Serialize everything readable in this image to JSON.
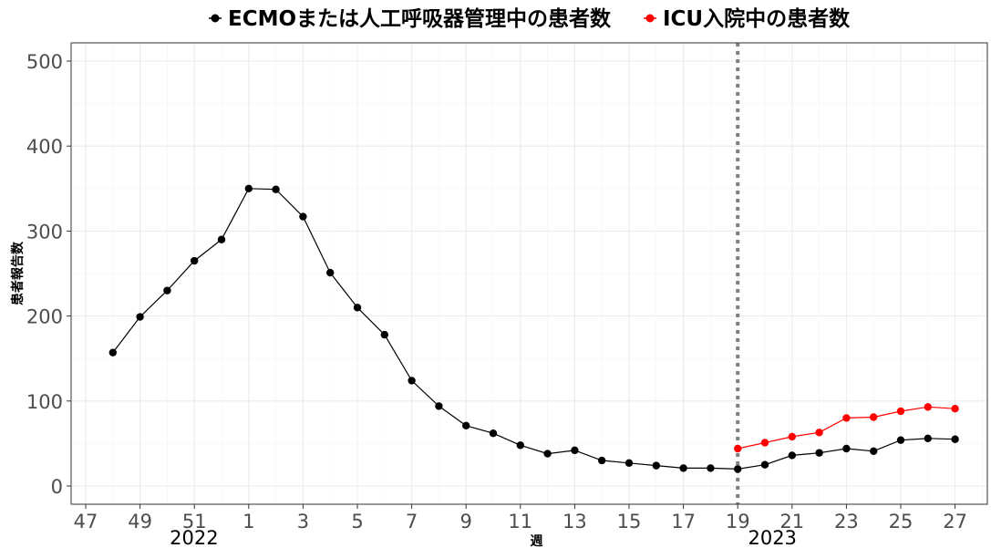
{
  "chart_data": {
    "type": "line",
    "legend": [
      {
        "name": "ECMOまたは人工呼吸器管理中の患者数",
        "color": "#000000"
      },
      {
        "name": "ICU入院中の患者数",
        "color": "#ff0000"
      }
    ],
    "xlabel": "週",
    "ylabel": "患者報告数",
    "ylim": [
      0,
      500
    ],
    "y_ticks": [
      0,
      100,
      200,
      300,
      400,
      500
    ],
    "x_ticks": [
      "47",
      "49",
      "51",
      "1",
      "3",
      "5",
      "7",
      "9",
      "11",
      "13",
      "15",
      "17",
      "19",
      "21",
      "23",
      "25",
      "27"
    ],
    "year_labels": [
      "2022",
      "2023"
    ],
    "vline_at_week": "2023-19",
    "grid": true,
    "legend_position": "top",
    "series": [
      {
        "name": "ECMOまたは人工呼吸器管理中の患者数",
        "color": "#000000",
        "x": [
          "48",
          "49",
          "50",
          "51",
          "52",
          "1",
          "2",
          "3",
          "4",
          "5",
          "6",
          "7",
          "8",
          "9",
          "10",
          "11",
          "12",
          "13",
          "14",
          "15",
          "16",
          "17",
          "18",
          "19",
          "20",
          "21",
          "22",
          "23",
          "24",
          "25",
          "26",
          "27"
        ],
        "values": [
          157,
          199,
          230,
          265,
          290,
          350,
          349,
          317,
          251,
          210,
          178,
          124,
          94,
          71,
          62,
          48,
          38,
          42,
          30,
          27,
          24,
          21,
          21,
          20,
          25,
          36,
          39,
          44,
          41,
          54,
          56,
          55
        ]
      },
      {
        "name": "ICU入院中の患者数",
        "color": "#ff0000",
        "x": [
          "19",
          "20",
          "21",
          "22",
          "23",
          "24",
          "25",
          "26",
          "27"
        ],
        "values": [
          44,
          51,
          58,
          63,
          80,
          81,
          88,
          93,
          91
        ]
      }
    ]
  }
}
